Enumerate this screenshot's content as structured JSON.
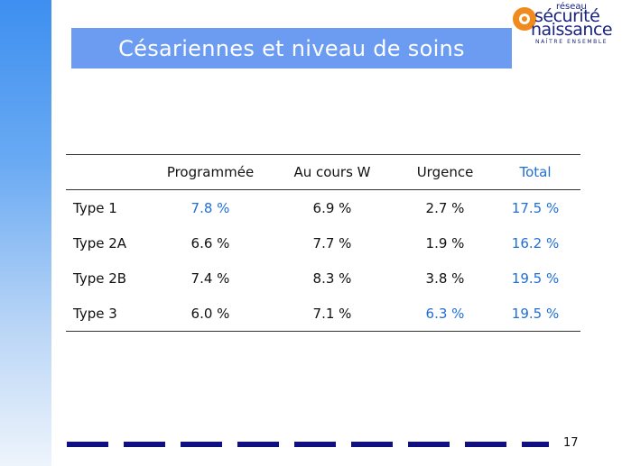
{
  "slide": {
    "title": "Césariennes et niveau de soins",
    "page_number": "17"
  },
  "logo": {
    "line1": "réseau",
    "line2": "sécurité",
    "line3": "naissance",
    "tagline": "NAÎTRE ENSEMBLE"
  },
  "table": {
    "headers": [
      "",
      "Programmée",
      "Au cours W",
      "Urgence",
      "Total"
    ],
    "rows": [
      {
        "label": "Type 1",
        "cells": [
          "7.8 %",
          "6.9 %",
          "2.7 %",
          "17.5 %"
        ]
      },
      {
        "label": "Type 2A",
        "cells": [
          "6.6 %",
          "7.7 %",
          "1.9 %",
          "16.2 %"
        ]
      },
      {
        "label": "Type 2B",
        "cells": [
          "7.4 %",
          "8.3 %",
          "3.8 %",
          "19.5 %"
        ]
      },
      {
        "label": "Type 3",
        "cells": [
          "6.0 %",
          "7.1 %",
          "6.3 %",
          "19.5 %"
        ]
      }
    ]
  },
  "colors": {
    "title_bar": "#6b9cf2",
    "highlight_blue": "#1f6fd6",
    "footer_dash": "#101080",
    "logo_orange": "#f08a1c"
  }
}
